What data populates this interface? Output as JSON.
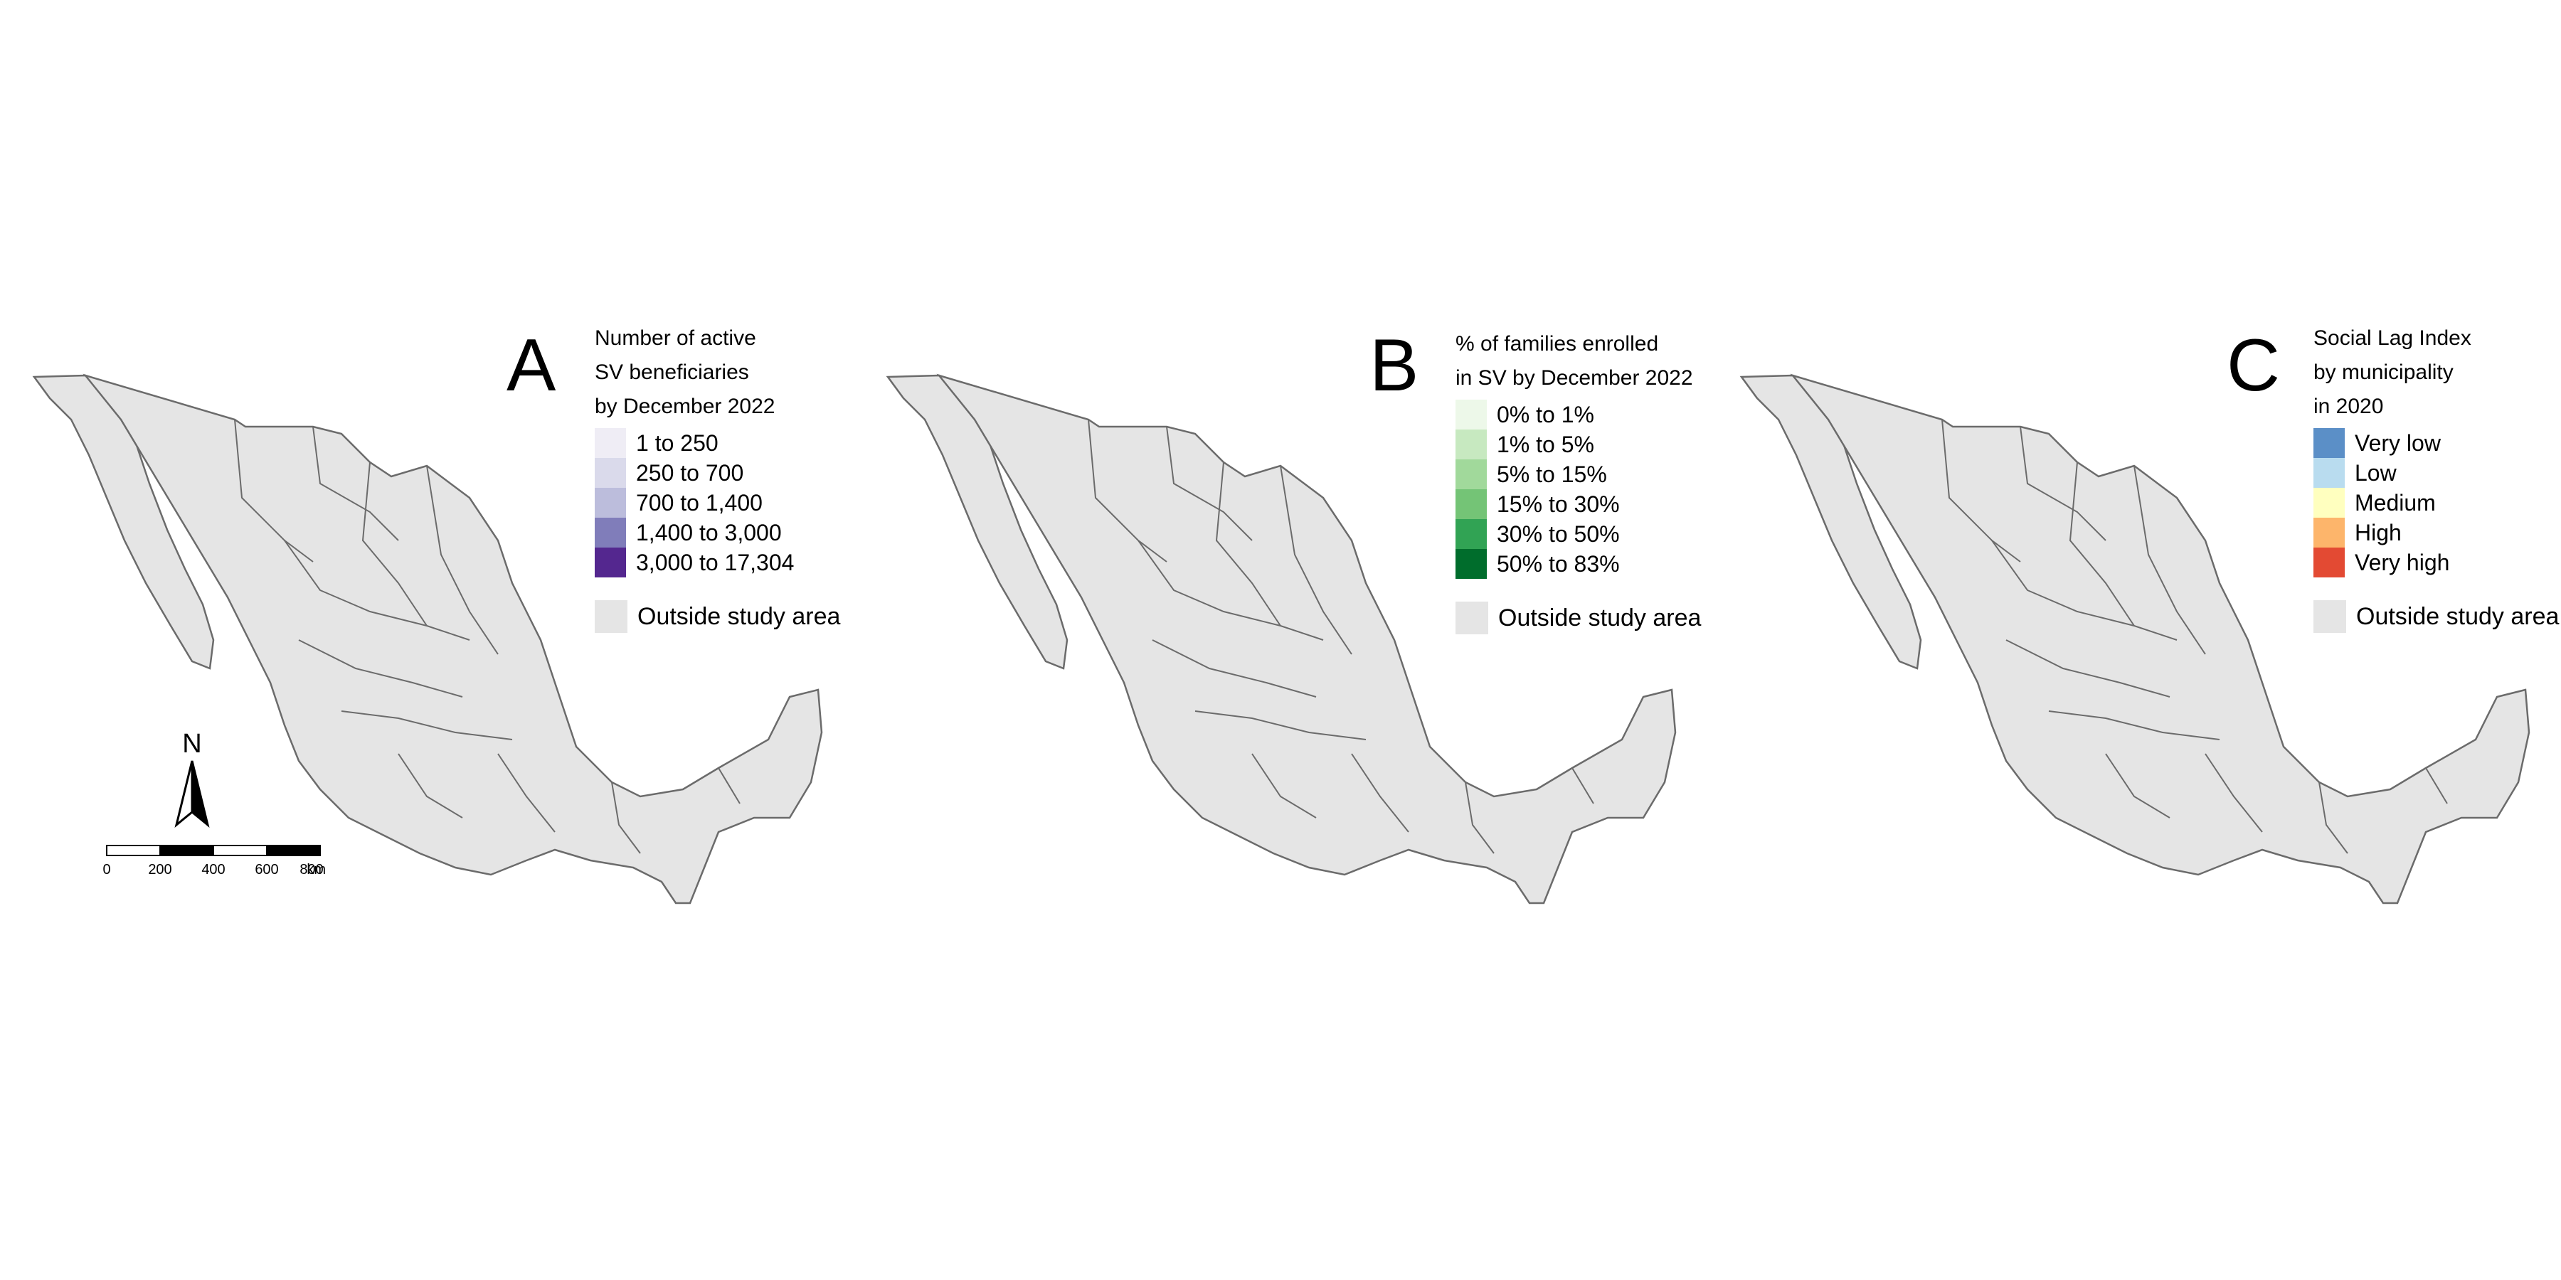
{
  "colors": {
    "outside": "#e5e5e5",
    "border": "#6b6b6b",
    "panel_a_ramp": [
      "#efedf5",
      "#dadaeb",
      "#bcbddc",
      "#807dba",
      "#54278f"
    ],
    "panel_b_ramp": [
      "#edf8e9",
      "#c7e9c0",
      "#a1d99b",
      "#74c476",
      "#31a354",
      "#006d2c"
    ],
    "panel_c_ramp": [
      "#5b8fc7",
      "#b9dcef",
      "#ffffbf",
      "#fdb56b",
      "#e34a33"
    ]
  },
  "panels": [
    {
      "letter": "A",
      "legend_title": [
        "Number of active",
        "SV beneficiaries",
        "by December 2022"
      ],
      "legend": [
        {
          "label": "1 to 250",
          "color": "#efedf5"
        },
        {
          "label": "250 to 700",
          "color": "#dadaeb"
        },
        {
          "label": "700 to 1,400",
          "color": "#bcbddc"
        },
        {
          "label": "1,400 to 3,000",
          "color": "#807dba"
        },
        {
          "label": "3,000 to 17,304",
          "color": "#54278f"
        }
      ],
      "outside_label": "Outside study area"
    },
    {
      "letter": "B",
      "legend_title": [
        "% of families enrolled",
        "in SV by December 2022"
      ],
      "legend": [
        {
          "label": "0% to 1%",
          "color": "#edf8e9"
        },
        {
          "label": "1% to 5%",
          "color": "#c7e9c0"
        },
        {
          "label": "5% to 15%",
          "color": "#a1d99b"
        },
        {
          "label": "15% to 30%",
          "color": "#74c476"
        },
        {
          "label": "30% to 50%",
          "color": "#31a354"
        },
        {
          "label": "50% to 83%",
          "color": "#006d2c"
        }
      ],
      "outside_label": "Outside study area"
    },
    {
      "letter": "C",
      "legend_title": [
        "Social Lag Index",
        "by municipality",
        " in 2020"
      ],
      "legend": [
        {
          "label": "Very low",
          "color": "#5b8fc7"
        },
        {
          "label": "Low",
          "color": "#b9dcef"
        },
        {
          "label": "Medium",
          "color": "#ffffbf"
        },
        {
          "label": "High",
          "color": "#fdb56b"
        },
        {
          "label": "Very high",
          "color": "#e34a33"
        }
      ],
      "outside_label": "Outside study area"
    }
  ],
  "north_label": "N",
  "scale_bar": {
    "ticks": [
      "0",
      "200",
      "400",
      "600",
      "800"
    ],
    "unit": "km"
  }
}
